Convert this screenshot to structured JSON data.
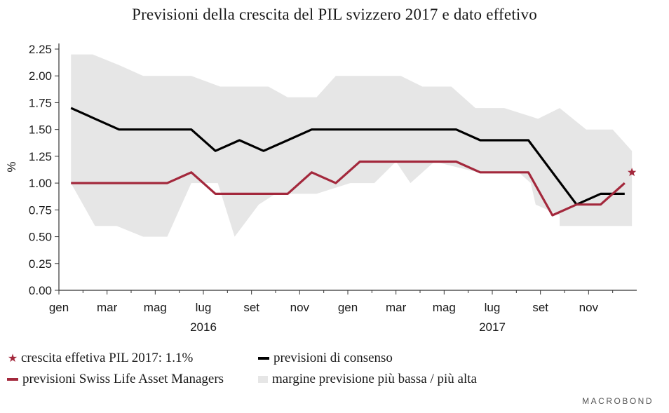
{
  "chart_data": {
    "type": "line",
    "title": "Previsioni della crescita del PIL svizzero 2017 e dato effetivo",
    "ylabel": "%",
    "ylim": [
      0,
      2.25
    ],
    "yticks": [
      0.0,
      0.25,
      0.5,
      0.75,
      1.0,
      1.25,
      1.5,
      1.75,
      2.0,
      2.25
    ],
    "ytick_labels": [
      "0.00",
      "0.25",
      "0.50",
      "0.75",
      "1.00",
      "1.25",
      "1.50",
      "1.75",
      "2.00",
      "2.25"
    ],
    "x_months": [
      "2016-01",
      "2016-02",
      "2016-03",
      "2016-04",
      "2016-05",
      "2016-06",
      "2016-07",
      "2016-08",
      "2016-09",
      "2016-10",
      "2016-11",
      "2016-12",
      "2017-01",
      "2017-02",
      "2017-03",
      "2017-04",
      "2017-05",
      "2017-06",
      "2017-07",
      "2017-08",
      "2017-09",
      "2017-10",
      "2017-11",
      "2017-12"
    ],
    "x_tick_labels": [
      {
        "month": "2016-01",
        "label": "gen"
      },
      {
        "month": "2016-03",
        "label": "mar"
      },
      {
        "month": "2016-05",
        "label": "mag"
      },
      {
        "month": "2016-07",
        "label": "lug"
      },
      {
        "month": "2016-09",
        "label": "set"
      },
      {
        "month": "2016-11",
        "label": "nov"
      },
      {
        "month": "2017-01",
        "label": "gen"
      },
      {
        "month": "2017-03",
        "label": "mar"
      },
      {
        "month": "2017-05",
        "label": "mag"
      },
      {
        "month": "2017-07",
        "label": "lug"
      },
      {
        "month": "2017-09",
        "label": "set"
      },
      {
        "month": "2017-11",
        "label": "nov"
      }
    ],
    "year_labels": [
      {
        "month": "2016-07",
        "label": "2016"
      },
      {
        "month": "2017-07",
        "label": "2017"
      }
    ],
    "range_band": {
      "name": "margine previsione più bassa / più alta",
      "color": "#e6e6e6",
      "upper": [
        2.2,
        2.1,
        2.0,
        2.0,
        1.9,
        1.9,
        1.9,
        1.8,
        2.0,
        2.0,
        1.9,
        1.9,
        1.7,
        1.6,
        1.7,
        1.5,
        1.5,
        1.3,
        1.3,
        1.3,
        1.3,
        1.3,
        1.3,
        1.3
      ],
      "lower": [
        1.0,
        0.6,
        0.5,
        1.0,
        1.0,
        0.5,
        0.8,
        0.9,
        0.9,
        1.0,
        1.0,
        1.2,
        1.0,
        1.2,
        1.2,
        1.2,
        1.1,
        0.6,
        0.6,
        0.6,
        0.6,
        0.6,
        0.6,
        0.6
      ],
      "x": [
        0,
        1,
        2,
        3,
        4,
        5,
        6,
        7,
        8,
        9,
        10,
        11,
        12,
        13,
        14,
        15,
        16,
        17,
        18,
        19,
        20,
        21,
        22,
        23
      ],
      "upper_points": [
        [
          0,
          2.2
        ],
        [
          0.9,
          2.2
        ],
        [
          2,
          2.1
        ],
        [
          3,
          2.0
        ],
        [
          5,
          2.0
        ],
        [
          6.2,
          1.9
        ],
        [
          8.2,
          1.9
        ],
        [
          9,
          1.8
        ],
        [
          10.2,
          1.8
        ],
        [
          11,
          2.0
        ],
        [
          13.7,
          2.0
        ],
        [
          14.6,
          1.9
        ],
        [
          15.8,
          1.9
        ],
        [
          16.8,
          1.7
        ],
        [
          18,
          1.7
        ],
        [
          19.4,
          1.6
        ],
        [
          20.3,
          1.7
        ],
        [
          21.4,
          1.5
        ],
        [
          22.5,
          1.5
        ],
        [
          23.3,
          1.3
        ]
      ],
      "lower_points": [
        [
          23.3,
          0.6
        ],
        [
          20.3,
          0.6
        ],
        [
          20.3,
          0.7
        ],
        [
          19.3,
          0.8
        ],
        [
          19.1,
          1.0
        ],
        [
          18.6,
          1.1
        ],
        [
          16.9,
          1.1
        ],
        [
          15.1,
          1.2
        ],
        [
          14.1,
          1.0
        ],
        [
          13.5,
          1.2
        ],
        [
          12.6,
          1.0
        ],
        [
          11.6,
          1.0
        ],
        [
          10.2,
          0.9
        ],
        [
          9.4,
          0.9
        ],
        [
          8.5,
          0.9
        ],
        [
          7.8,
          0.8
        ],
        [
          6.8,
          0.5
        ],
        [
          6.1,
          1.0
        ],
        [
          5.5,
          1.0
        ],
        [
          5.0,
          1.0
        ],
        [
          4.0,
          0.5
        ],
        [
          3.0,
          0.5
        ],
        [
          1.9,
          0.6
        ],
        [
          1,
          0.6
        ],
        [
          0,
          1.0
        ]
      ]
    },
    "series": [
      {
        "name": "previsioni di consenso",
        "color": "#000000",
        "points": [
          [
            0,
            1.7
          ],
          [
            1,
            1.6
          ],
          [
            2,
            1.5
          ],
          [
            3,
            1.5
          ],
          [
            4,
            1.5
          ],
          [
            5,
            1.5
          ],
          [
            6,
            1.3
          ],
          [
            7,
            1.4
          ],
          [
            8,
            1.3
          ],
          [
            9,
            1.4
          ],
          [
            10,
            1.5
          ],
          [
            11,
            1.5
          ],
          [
            12,
            1.5
          ],
          [
            13,
            1.5
          ],
          [
            14,
            1.5
          ],
          [
            15,
            1.5
          ],
          [
            16,
            1.5
          ],
          [
            17,
            1.4
          ],
          [
            18,
            1.4
          ],
          [
            19,
            1.4
          ],
          [
            20,
            1.1
          ],
          [
            21,
            0.8
          ],
          [
            22,
            0.9
          ],
          [
            23,
            0.9
          ]
        ]
      },
      {
        "name": "previsioni Swiss Life Asset Managers",
        "color": "#a3283c",
        "points": [
          [
            0,
            1.0
          ],
          [
            1,
            1.0
          ],
          [
            2,
            1.0
          ],
          [
            3,
            1.0
          ],
          [
            4,
            1.0
          ],
          [
            5,
            1.1
          ],
          [
            6,
            0.9
          ],
          [
            7,
            0.9
          ],
          [
            8,
            0.9
          ],
          [
            9,
            0.9
          ],
          [
            10,
            1.1
          ],
          [
            11,
            1.0
          ],
          [
            12,
            1.2
          ],
          [
            13,
            1.2
          ],
          [
            14,
            1.2
          ],
          [
            15,
            1.2
          ],
          [
            16,
            1.2
          ],
          [
            17,
            1.1
          ],
          [
            18,
            1.1
          ],
          [
            19,
            1.1
          ],
          [
            20,
            0.7
          ],
          [
            21,
            0.8
          ],
          [
            22,
            0.8
          ],
          [
            23,
            1.0
          ]
        ]
      }
    ],
    "actual_point": {
      "name": "crescita effetiva PIL 2017: 1.1%",
      "x": 23.3,
      "y": 1.1,
      "color": "#a3283c",
      "marker": "star"
    },
    "grid": false,
    "legend_position": "bottom"
  },
  "legend": {
    "star_label": "crescita effetiva PIL 2017: 1.1%",
    "consensus_label": "previsioni di consenso",
    "swisslife_label": "previsioni Swiss Life Asset Managers",
    "band_label": "margine previsione più bassa / più alta"
  },
  "brand": {
    "logo_text": "MACROBOND"
  }
}
